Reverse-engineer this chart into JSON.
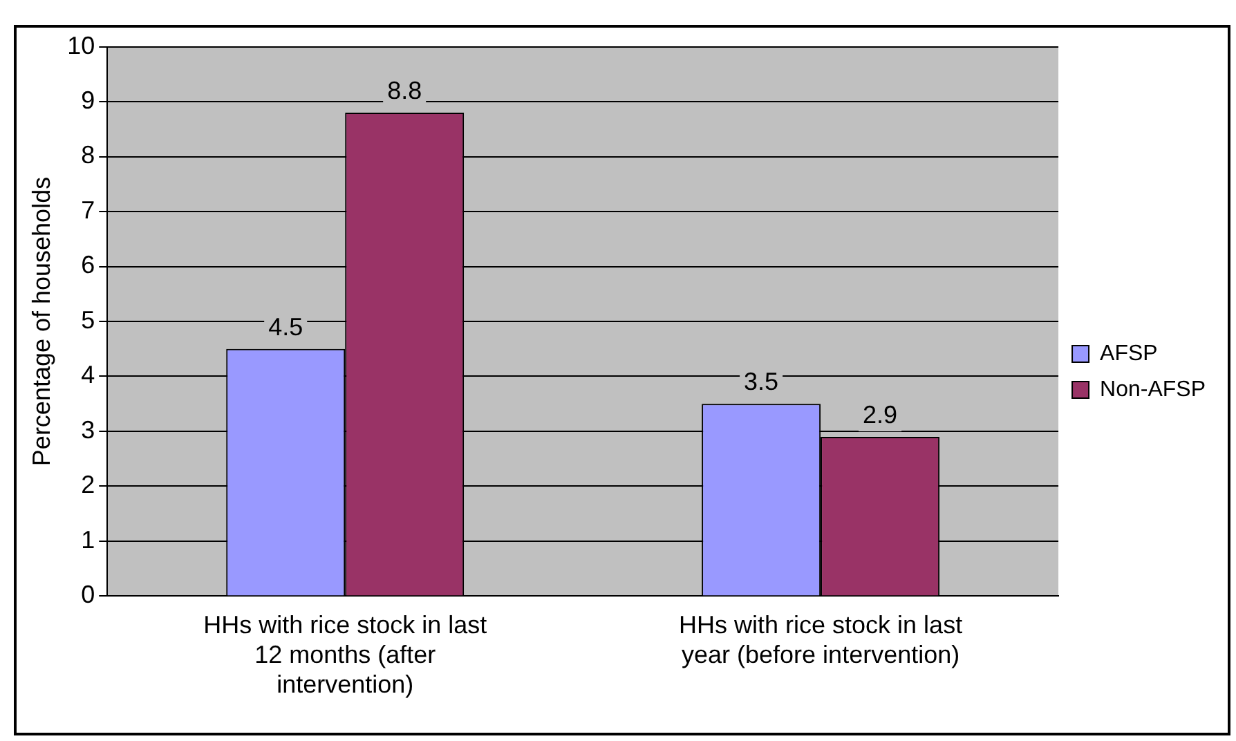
{
  "chart_data": {
    "type": "bar",
    "ylabel": "Percentage of households",
    "categories": [
      "HHs with rice stock in last 12 months (after intervention)",
      "HHs with rice stock in last year (before intervention)"
    ],
    "series": [
      {
        "name": "AFSP",
        "color": "#9999ff",
        "values": [
          4.5,
          3.5
        ]
      },
      {
        "name": "Non-AFSP",
        "color": "#993366",
        "values": [
          8.8,
          2.9
        ]
      }
    ],
    "ylim": [
      0,
      10
    ],
    "yticks": [
      0,
      1,
      2,
      3,
      4,
      5,
      6,
      7,
      8,
      9,
      10
    ],
    "grid": "y",
    "legend": "right",
    "data_labels": true
  }
}
